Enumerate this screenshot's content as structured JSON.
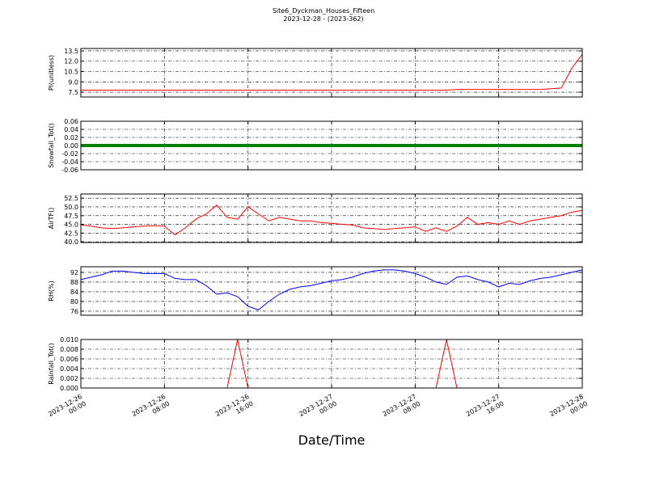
{
  "title": "Site6_Dyckman_Houses_Fifteen",
  "subtitle": "2023-12-28 - (2023-362)",
  "xlabel": "Date/Time",
  "xlim": [
    "2023-12-26 00:00",
    "2023-12-28 00:00"
  ],
  "xticks": [
    {
      "value": "2023-12-26 00:00",
      "label": "2023-12-26\n00:00"
    },
    {
      "value": "2023-12-26 08:00",
      "label": "2023-12-26\n08:00"
    },
    {
      "value": "2023-12-26 16:00",
      "label": "2023-12-26\n16:00"
    },
    {
      "value": "2023-12-27 00:00",
      "label": "2023-12-27\n00:00"
    },
    {
      "value": "2023-12-27 08:00",
      "label": "2023-12-27\n08:00"
    },
    {
      "value": "2023-12-27 16:00",
      "label": "2023-12-27\n16:00"
    },
    {
      "value": "2023-12-28 00:00",
      "label": "2023-12-28\n00:00"
    }
  ],
  "x": [
    "2023-12-26 00:00",
    "2023-12-26 01:00",
    "2023-12-26 02:00",
    "2023-12-26 03:00",
    "2023-12-26 04:00",
    "2023-12-26 05:00",
    "2023-12-26 06:00",
    "2023-12-26 07:00",
    "2023-12-26 08:00",
    "2023-12-26 09:00",
    "2023-12-26 10:00",
    "2023-12-26 11:00",
    "2023-12-26 12:00",
    "2023-12-26 13:00",
    "2023-12-26 14:00",
    "2023-12-26 15:00",
    "2023-12-26 16:00",
    "2023-12-26 17:00",
    "2023-12-26 18:00",
    "2023-12-26 19:00",
    "2023-12-26 20:00",
    "2023-12-26 21:00",
    "2023-12-26 22:00",
    "2023-12-26 23:00",
    "2023-12-27 00:00",
    "2023-12-27 01:00",
    "2023-12-27 02:00",
    "2023-12-27 03:00",
    "2023-12-27 04:00",
    "2023-12-27 05:00",
    "2023-12-27 06:00",
    "2023-12-27 07:00",
    "2023-12-27 08:00",
    "2023-12-27 09:00",
    "2023-12-27 10:00",
    "2023-12-27 11:00",
    "2023-12-27 12:00",
    "2023-12-27 13:00",
    "2023-12-27 14:00",
    "2023-12-27 15:00",
    "2023-12-27 16:00",
    "2023-12-27 17:00",
    "2023-12-27 18:00",
    "2023-12-27 19:00",
    "2023-12-27 20:00",
    "2023-12-27 21:00",
    "2023-12-27 22:00",
    "2023-12-27 23:00",
    "2023-12-28 00:00"
  ],
  "chart_data": [
    {
      "type": "line",
      "ylabel": "Pl(unitless)",
      "ylim": [
        6.8,
        13.85
      ],
      "yticks": [
        7.5,
        {
          "value": 9,
          "label": "9.0"
        },
        10.5,
        {
          "value": 12,
          "label": "12.0"
        },
        13.5
      ],
      "grid": true,
      "series": [
        {
          "color": "#ff0000",
          "values": [
            7.8,
            7.8,
            7.8,
            7.8,
            7.8,
            7.8,
            7.8,
            7.8,
            7.8,
            7.8,
            7.8,
            7.8,
            7.8,
            7.8,
            7.8,
            7.8,
            7.8,
            7.8,
            7.8,
            7.8,
            7.8,
            7.8,
            7.8,
            7.8,
            7.8,
            7.8,
            7.8,
            7.8,
            7.8,
            7.8,
            7.8,
            7.8,
            7.8,
            7.8,
            7.8,
            7.8,
            7.9,
            7.9,
            7.9,
            7.9,
            7.9,
            7.9,
            7.9,
            7.9,
            7.9,
            8.0,
            8.1,
            11.0,
            13.0
          ]
        }
      ]
    },
    {
      "type": "line",
      "ylabel": "Snowfall_Tot()",
      "ylim": [
        -0.06,
        0.06
      ],
      "yticks": [
        -0.06,
        -0.04,
        -0.02,
        {
          "value": 0,
          "label": "0.00"
        },
        0.02,
        0.04,
        0.06
      ],
      "grid": true,
      "series": [
        {
          "color": "#008000",
          "values": [
            0,
            0,
            0,
            0,
            0,
            0,
            0,
            0,
            0,
            0,
            0,
            0,
            0,
            0,
            0,
            0,
            0,
            0,
            0,
            0,
            0,
            0,
            0,
            0,
            0,
            0,
            0,
            0,
            0,
            0,
            0,
            0,
            0,
            0,
            0,
            0,
            0,
            0,
            0,
            0,
            0,
            0,
            0,
            0,
            0,
            0,
            0,
            0,
            0
          ]
        }
      ]
    },
    {
      "type": "line",
      "ylabel": "AirTF()",
      "ylim": [
        39.8,
        53.7
      ],
      "yticks": [
        {
          "value": 40,
          "label": "40.0"
        },
        42.5,
        {
          "value": 45,
          "label": "45.0"
        },
        47.5,
        {
          "value": 50,
          "label": "50.0"
        },
        52.5
      ],
      "grid": true,
      "series": [
        {
          "color": "#ff0000",
          "values": [
            44.8,
            44.5,
            44,
            43.8,
            44,
            44.3,
            44.5,
            44.6,
            44.5,
            42,
            44,
            46.5,
            48,
            50.5,
            47,
            46.5,
            50,
            48,
            46,
            47,
            46.5,
            46,
            46,
            45.5,
            45.3,
            45,
            44.8,
            44,
            43.8,
            43.5,
            43.8,
            44,
            44.3,
            43,
            44,
            43,
            44.5,
            47,
            45,
            45.5,
            45,
            46,
            45,
            46,
            46.5,
            47,
            47.5,
            48.5,
            49
          ]
        }
      ]
    },
    {
      "type": "line",
      "ylabel": "RH(%)",
      "ylim": [
        74.3,
        94.3
      ],
      "yticks": [
        76,
        80,
        84,
        88,
        92
      ],
      "grid": true,
      "series": [
        {
          "color": "#0000ff",
          "values": [
            89,
            90,
            91,
            92.5,
            92.5,
            92,
            91.5,
            91.5,
            91.5,
            89.5,
            89,
            89,
            86.5,
            83,
            83.5,
            82,
            78,
            76.5,
            80,
            83,
            85,
            86,
            86.5,
            87.5,
            88.5,
            89,
            90,
            91.5,
            92.5,
            93,
            93,
            92.5,
            91.5,
            90,
            88,
            87,
            90,
            90.5,
            89,
            88,
            86,
            87.5,
            87,
            88.5,
            89.5,
            90,
            91,
            92,
            93
          ]
        }
      ]
    },
    {
      "type": "line",
      "ylabel": "Rainfall_Tot()",
      "ylim": [
        0,
        0.01
      ],
      "yticks": [
        {
          "value": 0,
          "label": "0.000"
        },
        0.002,
        0.004,
        0.006,
        0.008,
        {
          "value": 0.01,
          "label": "0.010"
        }
      ],
      "grid": true,
      "series": [
        {
          "color": "#ff0000",
          "values": [
            0,
            0,
            0,
            0,
            0,
            0,
            0,
            0,
            0,
            0,
            0,
            0,
            0,
            0,
            0,
            0.01,
            0,
            0,
            0,
            0,
            0,
            0,
            0,
            0,
            0,
            0,
            0,
            0,
            0,
            0,
            0,
            0,
            0,
            0,
            0,
            0.01,
            0,
            0,
            0,
            0,
            0,
            0,
            0,
            0,
            0,
            0,
            0,
            0,
            0
          ]
        }
      ]
    }
  ]
}
